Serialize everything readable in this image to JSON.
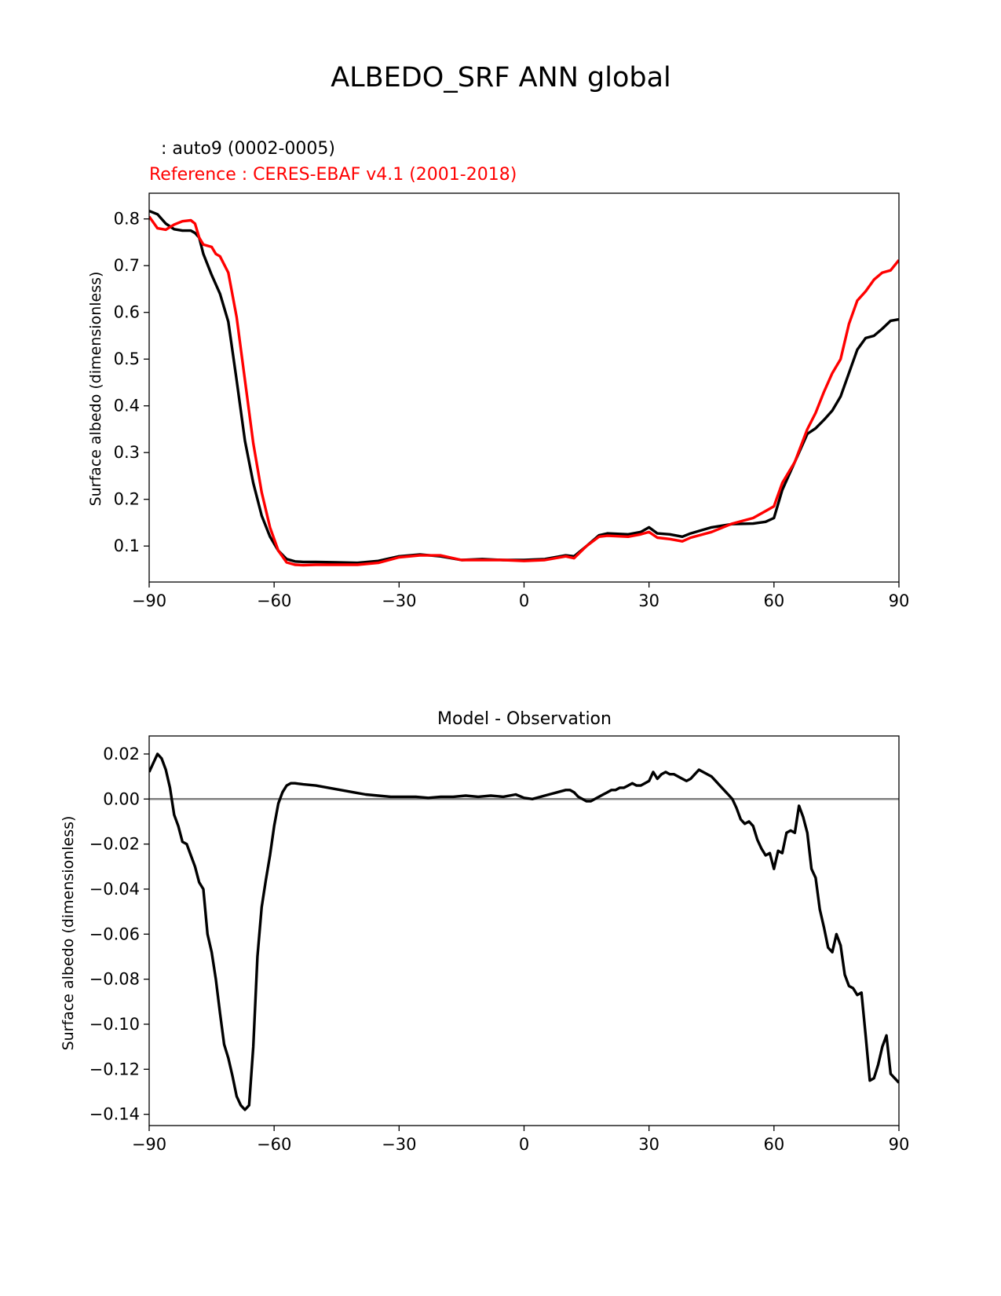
{
  "figure_title": "ALBEDO_SRF ANN global",
  "chart_data": [
    {
      "type": "line",
      "title": "",
      "test_label": ": auto9 (0002-0005)",
      "ref_label": "Reference : CERES-EBAF v4.1 (2001-2018)",
      "xlabel": "",
      "ylabel": "Surface albedo (dimensionless)",
      "xlim": [
        -90,
        90
      ],
      "ylim": [
        0.023,
        0.855
      ],
      "xticks": [
        -90,
        -60,
        -30,
        0,
        30,
        60,
        90
      ],
      "xtick_labels": [
        "−90",
        "−60",
        "−30",
        "0",
        "30",
        "60",
        "90"
      ],
      "yticks": [
        0.1,
        0.2,
        0.3,
        0.4,
        0.5,
        0.6,
        0.7,
        0.8
      ],
      "ytick_labels": [
        "0.1",
        "0.2",
        "0.3",
        "0.4",
        "0.5",
        "0.6",
        "0.7",
        "0.8"
      ],
      "grid": false,
      "series": [
        {
          "color": "#000000",
          "x": [
            -90,
            -88,
            -86,
            -84,
            -82,
            -80,
            -79,
            -78,
            -77,
            -75,
            -73,
            -71,
            -69,
            -67,
            -65,
            -63,
            -61,
            -59,
            -57,
            -55,
            -53,
            -50,
            -45,
            -40,
            -35,
            -30,
            -25,
            -20,
            -15,
            -10,
            -5,
            0,
            5,
            10,
            12,
            15,
            18,
            20,
            25,
            28,
            30,
            32,
            35,
            38,
            40,
            45,
            50,
            55,
            58,
            60,
            62,
            65,
            68,
            70,
            72,
            74,
            76,
            78,
            80,
            82,
            84,
            86,
            88,
            90
          ],
          "y": [
            0.817,
            0.81,
            0.79,
            0.778,
            0.775,
            0.775,
            0.77,
            0.76,
            0.725,
            0.68,
            0.64,
            0.58,
            0.455,
            0.325,
            0.235,
            0.165,
            0.12,
            0.09,
            0.072,
            0.067,
            0.066,
            0.066,
            0.065,
            0.064,
            0.068,
            0.078,
            0.082,
            0.078,
            0.07,
            0.072,
            0.07,
            0.07,
            0.072,
            0.08,
            0.078,
            0.1,
            0.123,
            0.127,
            0.125,
            0.13,
            0.14,
            0.127,
            0.125,
            0.12,
            0.127,
            0.14,
            0.147,
            0.148,
            0.152,
            0.16,
            0.22,
            0.28,
            0.34,
            0.352,
            0.37,
            0.39,
            0.42,
            0.47,
            0.52,
            0.545,
            0.55,
            0.565,
            0.582,
            0.585
          ]
        },
        {
          "color": "#ff0000",
          "x": [
            -90,
            -88,
            -86,
            -84,
            -82,
            -80,
            -79,
            -78,
            -77,
            -75,
            -74,
            -73,
            -71,
            -69,
            -67,
            -65,
            -63,
            -61,
            -59,
            -57,
            -55,
            -53,
            -50,
            -45,
            -40,
            -35,
            -30,
            -25,
            -20,
            -15,
            -10,
            -5,
            0,
            5,
            10,
            12,
            15,
            18,
            20,
            25,
            28,
            30,
            32,
            35,
            38,
            40,
            45,
            50,
            55,
            58,
            60,
            62,
            65,
            68,
            70,
            72,
            74,
            76,
            78,
            80,
            82,
            84,
            86,
            88,
            90
          ],
          "y": [
            0.805,
            0.78,
            0.777,
            0.788,
            0.795,
            0.797,
            0.79,
            0.76,
            0.745,
            0.74,
            0.725,
            0.72,
            0.685,
            0.59,
            0.455,
            0.32,
            0.215,
            0.14,
            0.09,
            0.065,
            0.06,
            0.059,
            0.06,
            0.06,
            0.06,
            0.064,
            0.076,
            0.08,
            0.08,
            0.07,
            0.07,
            0.07,
            0.068,
            0.07,
            0.078,
            0.074,
            0.1,
            0.12,
            0.122,
            0.12,
            0.125,
            0.13,
            0.118,
            0.115,
            0.11,
            0.118,
            0.13,
            0.148,
            0.16,
            0.175,
            0.185,
            0.235,
            0.28,
            0.35,
            0.385,
            0.43,
            0.47,
            0.5,
            0.575,
            0.625,
            0.645,
            0.67,
            0.685,
            0.69,
            0.712
          ]
        }
      ]
    },
    {
      "type": "line",
      "title": "Model - Observation",
      "xlabel": "",
      "ylabel": "Surface albedo (dimensionless)",
      "xlim": [
        -90,
        90
      ],
      "ylim": [
        -0.145,
        0.028
      ],
      "xticks": [
        -90,
        -60,
        -30,
        0,
        30,
        60,
        90
      ],
      "xtick_labels": [
        "−90",
        "−60",
        "−30",
        "0",
        "30",
        "60",
        "90"
      ],
      "yticks": [
        0.02,
        0.0,
        -0.02,
        -0.04,
        -0.06,
        -0.08,
        -0.1,
        -0.12,
        -0.14
      ],
      "ytick_labels": [
        "0.02",
        "0.00",
        "−0.02",
        "−0.04",
        "−0.06",
        "−0.08",
        "−0.10",
        "−0.12",
        "−0.14"
      ],
      "grid": false,
      "zero_line_color": "#808080",
      "series": [
        {
          "color": "#000000",
          "x": [
            -90,
            -89,
            -88,
            -87,
            -86,
            -85,
            -84,
            -83,
            -82,
            -81,
            -80,
            -79,
            -78,
            -77,
            -76,
            -75,
            -74,
            -73,
            -72,
            -71,
            -70,
            -69,
            -68,
            -67,
            -66,
            -65,
            -64,
            -63,
            -62,
            -61,
            -60,
            -59,
            -58,
            -57,
            -56,
            -55,
            -53,
            -50,
            -47,
            -44,
            -41,
            -38,
            -35,
            -32,
            -29,
            -26,
            -23,
            -20,
            -17,
            -14,
            -11,
            -8,
            -5,
            -2,
            0,
            2,
            4,
            6,
            8,
            10,
            11,
            12,
            13,
            14,
            15,
            16,
            17,
            18,
            19,
            20,
            21,
            22,
            23,
            24,
            25,
            26,
            27,
            28,
            29,
            30,
            31,
            32,
            33,
            34,
            35,
            36,
            37,
            38,
            39,
            40,
            41,
            42,
            43,
            44,
            45,
            46,
            47,
            48,
            49,
            50,
            51,
            52,
            53,
            54,
            55,
            56,
            57,
            58,
            59,
            60,
            61,
            62,
            63,
            64,
            65,
            66,
            67,
            68,
            69,
            70,
            71,
            72,
            73,
            74,
            75,
            76,
            77,
            78,
            79,
            80,
            81,
            82,
            83,
            84,
            85,
            86,
            87,
            88,
            89,
            90
          ],
          "y": [
            0.012,
            0.016,
            0.02,
            0.018,
            0.013,
            0.005,
            -0.007,
            -0.012,
            -0.019,
            -0.02,
            -0.025,
            -0.03,
            -0.037,
            -0.04,
            -0.06,
            -0.068,
            -0.08,
            -0.095,
            -0.109,
            -0.115,
            -0.123,
            -0.132,
            -0.136,
            -0.138,
            -0.136,
            -0.11,
            -0.07,
            -0.048,
            -0.036,
            -0.025,
            -0.012,
            -0.002,
            0.003,
            0.006,
            0.007,
            0.007,
            0.0065,
            0.006,
            0.005,
            0.004,
            0.003,
            0.002,
            0.0015,
            0.001,
            0.001,
            0.001,
            0.0005,
            0.001,
            0.001,
            0.0015,
            0.001,
            0.0015,
            0.001,
            0.002,
            0.0005,
            0.0,
            0.001,
            0.002,
            0.003,
            0.004,
            0.004,
            0.003,
            0.001,
            0.0,
            -0.001,
            -0.001,
            0.0,
            0.001,
            0.002,
            0.003,
            0.004,
            0.004,
            0.005,
            0.005,
            0.006,
            0.007,
            0.006,
            0.006,
            0.007,
            0.008,
            0.012,
            0.009,
            0.011,
            0.012,
            0.011,
            0.011,
            0.01,
            0.009,
            0.008,
            0.009,
            0.011,
            0.013,
            0.012,
            0.011,
            0.01,
            0.008,
            0.006,
            0.004,
            0.002,
            0.0,
            -0.004,
            -0.009,
            -0.011,
            -0.01,
            -0.012,
            -0.018,
            -0.022,
            -0.025,
            -0.024,
            -0.031,
            -0.023,
            -0.024,
            -0.015,
            -0.014,
            -0.015,
            -0.003,
            -0.008,
            -0.015,
            -0.031,
            -0.035,
            -0.049,
            -0.057,
            -0.066,
            -0.068,
            -0.06,
            -0.065,
            -0.078,
            -0.083,
            -0.084,
            -0.087,
            -0.086,
            -0.105,
            -0.125,
            -0.124,
            -0.118,
            -0.11,
            -0.105,
            -0.122,
            -0.124,
            -0.126
          ]
        }
      ]
    }
  ]
}
